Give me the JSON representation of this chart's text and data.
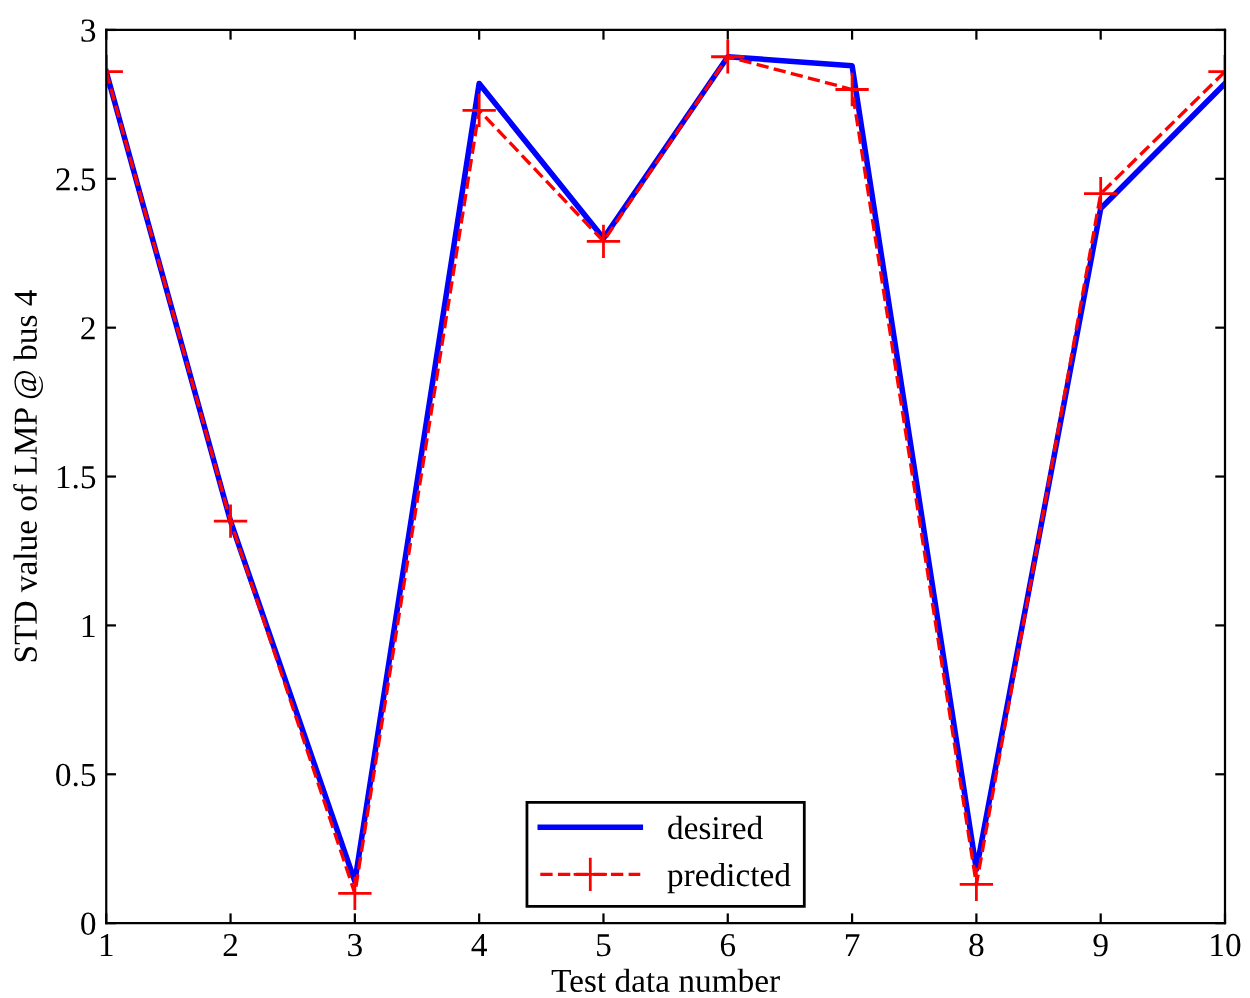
{
  "chart_data": {
    "type": "line",
    "xlabel": "Test data number",
    "ylabel": "STD value of LMP @ bus 4",
    "x": [
      1,
      2,
      3,
      4,
      5,
      6,
      7,
      8,
      9,
      10
    ],
    "series": [
      {
        "name": "desired",
        "color": "#0000ff",
        "values": [
          2.86,
          1.35,
          0.14,
          2.82,
          2.3,
          2.91,
          2.88,
          0.18,
          2.4,
          2.82
        ],
        "line_style": "solid",
        "marker": "none"
      },
      {
        "name": "predicted",
        "color": "#ff0000",
        "values": [
          2.86,
          1.35,
          0.1,
          2.73,
          2.29,
          2.91,
          2.8,
          0.13,
          2.45,
          2.86
        ],
        "line_style": "dashed",
        "marker": "cross"
      }
    ],
    "xlim": [
      1,
      10
    ],
    "ylim": [
      0,
      3
    ],
    "xticks": [
      1,
      2,
      3,
      4,
      5,
      6,
      7,
      8,
      9,
      10
    ],
    "yticks": [
      0,
      0.5,
      1,
      1.5,
      2,
      2.5,
      3
    ],
    "grid": false,
    "legend": "bottom"
  }
}
